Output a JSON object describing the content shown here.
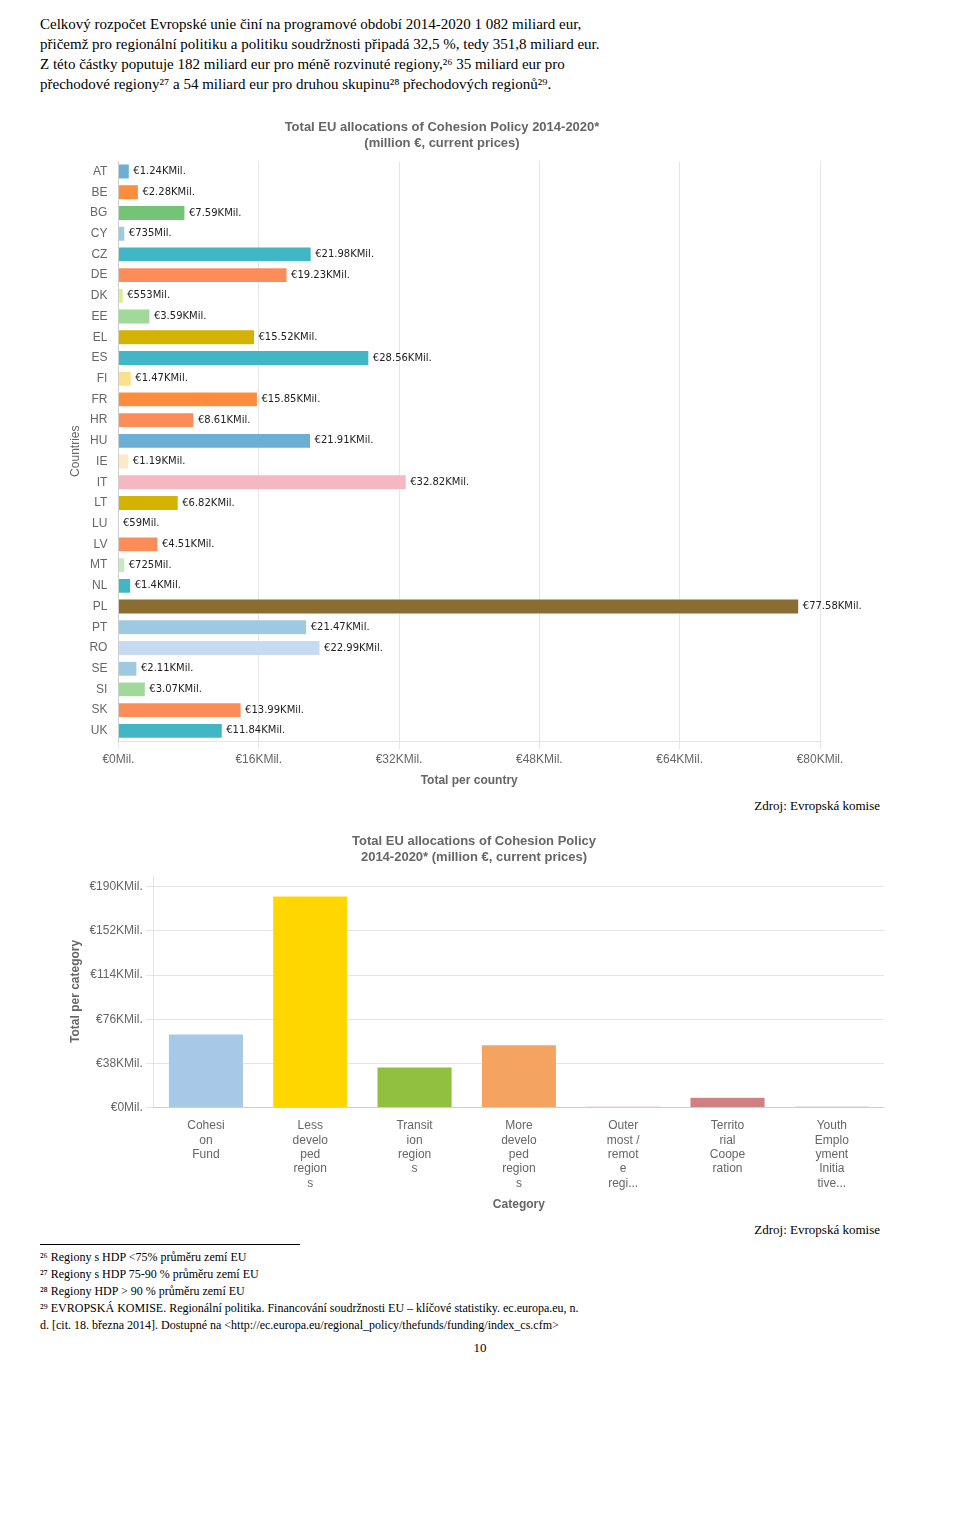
{
  "page_text": [
    "Celkový rozpočet Evropské unie činí na programové období 2014-2020 1 082 miliard eur,",
    "přičemž pro regionální politiku a politiku soudržnosti připadá 32,5 %, tedy 351,8 miliard eur.",
    "Z této částky poputuje 182 miliard eur pro méně rozvinuté regiony,²⁶ 35 miliard eur pro",
    "přechodové regiony²⁷ a 54 miliard eur pro druhou skupinu²⁸ přechodových regionů²⁹."
  ],
  "chart_data": [
    {
      "type": "bar",
      "orientation": "horizontal",
      "title": "Total EU allocations of Cohesion Policy 2014-2020*\n(million €, current prices)",
      "xlabel": "Total per country",
      "ylabel": "Countries",
      "categories": [
        "AT",
        "BE",
        "BG",
        "CY",
        "CZ",
        "DE",
        "DK",
        "EE",
        "EL",
        "ES",
        "FI",
        "FR",
        "HR",
        "HU",
        "IE",
        "IT",
        "LT",
        "LU",
        "LV",
        "MT",
        "NL",
        "PL",
        "PT",
        "RO",
        "SE",
        "SI",
        "SK",
        "UK"
      ],
      "values": [
        1240,
        2280,
        7590,
        735,
        21980,
        19230,
        553,
        3590,
        15520,
        28560,
        1470,
        15850,
        8610,
        21910,
        1190,
        32820,
        6820,
        59,
        4510,
        725,
        1400,
        77580,
        21470,
        22990,
        2110,
        3070,
        13990,
        11840
      ],
      "value_labels": [
        "€1.24KMil.",
        "€2.28KMil.",
        "€7.59KMil.",
        "€735Mil.",
        "€21.98KMil.",
        "€19.23KMil.",
        "€553Mil.",
        "€3.59KMil.",
        "€15.52KMil.",
        "€28.56KMil.",
        "€1.47KMil.",
        "€15.85KMil.",
        "€8.61KMil.",
        "€21.91KMil.",
        "€1.19KMil.",
        "€32.82KMil.",
        "€6.82KMil.",
        "€59Mil.",
        "€4.51KMil.",
        "€725Mil.",
        "€1.4KMil.",
        "€77.58KMil.",
        "€21.47KMil.",
        "€22.99KMil.",
        "€2.11KMil.",
        "€3.07KMil.",
        "€13.99KMil.",
        "€11.84KMil."
      ],
      "data_labels": true,
      "colors": [
        "#6baed6",
        "#fd8d3c",
        "#74c476",
        "#9ecae1",
        "#41b6c4",
        "#fc8d59",
        "#d9ef8b",
        "#a1d99b",
        "#d4b200",
        "#41b6c4",
        "#fee08b",
        "#fd8d3c",
        "#fc8d59",
        "#6baed6",
        "#fee8c8",
        "#f4b8c1",
        "#d4b200",
        "#c6dbef",
        "#fc8d59",
        "#c7e9c0",
        "#41b6c4",
        "#8c6d31",
        "#9ecae1",
        "#c6dbef",
        "#9ecae1",
        "#a1d99b",
        "#fc8d59",
        "#41b6c4"
      ],
      "xlim": [
        0,
        80000
      ],
      "xticks": [
        {
          "value": 0,
          "label": "€0Mil."
        },
        {
          "value": 16000,
          "label": "€16KMil."
        },
        {
          "value": 32000,
          "label": "€32KMil."
        },
        {
          "value": 48000,
          "label": "€48KMil."
        },
        {
          "value": 64000,
          "label": "€64KMil."
        },
        {
          "value": 80000,
          "label": "€80KMil."
        }
      ],
      "grid": true,
      "annotation": "Zdroj: Evropská komise"
    },
    {
      "type": "bar",
      "title": "Total EU allocations of Cohesion Policy\n2014-2020* (million €, current prices)",
      "xlabel": "Category",
      "ylabel": "Total per category",
      "categories": [
        "Cohesi\non\nFund",
        "Less\ndevelo\nped\nregion\ns",
        "Transit\nion\nregion\ns",
        "More\ndevelo\nped\nregion\ns",
        "Outer\nmost /\nremot\ne\nregi...",
        "Territo\nrial\nCoope\nration",
        "Youth\nEmplo\nyment\nInitia\ntive..."
      ],
      "values": [
        63400,
        182200,
        35000,
        54000,
        1100,
        8900,
        900
      ],
      "colors": [
        "#a8c8e8",
        "#ffd700",
        "#90c040",
        "#f4a460",
        "#e87878",
        "#d08080",
        "#404040"
      ],
      "ylim": [
        0,
        200000
      ],
      "yticks": [
        {
          "value": 0,
          "label": "€0Mil."
        },
        {
          "value": 38000,
          "label": "€38KMil."
        },
        {
          "value": 76000,
          "label": "€76KMil."
        },
        {
          "value": 114000,
          "label": "€114KMil."
        },
        {
          "value": 152000,
          "label": "€152KMil."
        },
        {
          "value": 190000,
          "label": "€190KMil."
        }
      ],
      "grid": true,
      "annotation": "Zdroj: Evropská komise"
    }
  ],
  "footnotes": [
    "²⁶ Regiony s HDP <75% průměru zemí EU",
    "²⁷ Regiony s HDP 75-90 % průměru zemí EU",
    "²⁸ Regiony HDP > 90 % průměru zemí EU",
    "²⁹ EVROPSKÁ KOMISE. Regionální politika. Financování soudržnosti EU – klíčové statistiky. ec.europa.eu, n.",
    "d. [cit. 18. března 2014]. Dostupné na <http://ec.europa.eu/regional_policy/thefunds/funding/index_cs.cfm>"
  ],
  "page_number": "10"
}
